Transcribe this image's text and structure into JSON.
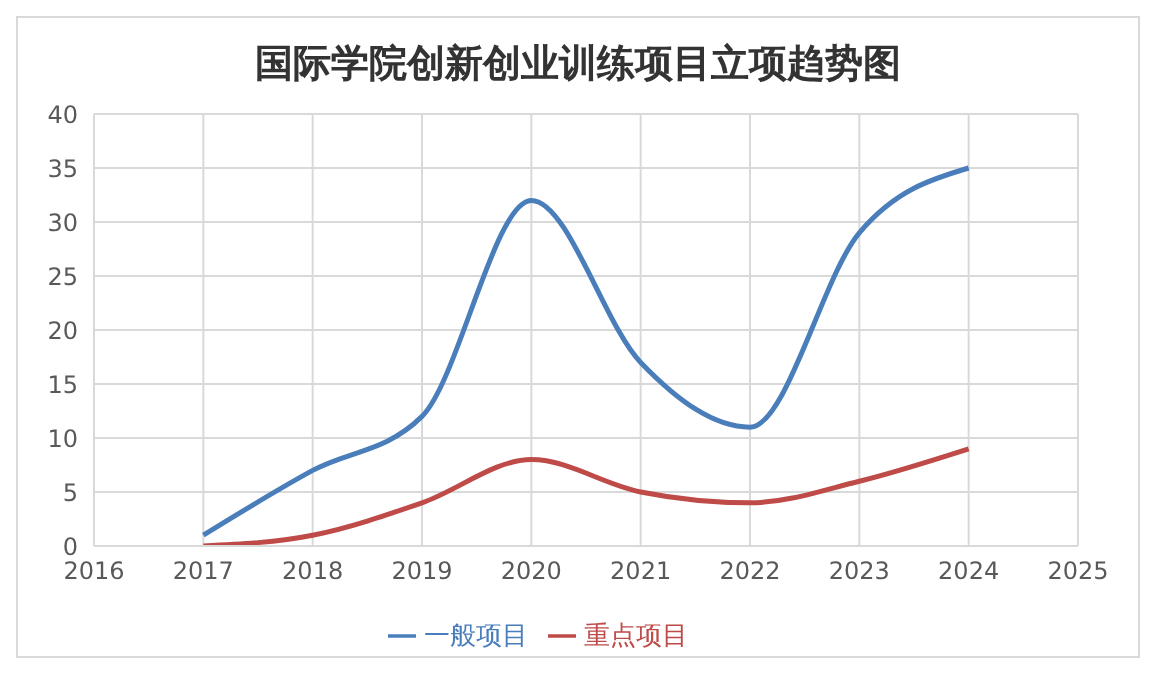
{
  "chart_data": {
    "type": "line",
    "title": "国际学院创新创业训练项目立项趋势图",
    "x": [
      2017,
      2018,
      2019,
      2020,
      2021,
      2022,
      2023,
      2024
    ],
    "series": [
      {
        "name": "一般项目",
        "color": "#4a7ebb",
        "values": [
          1,
          7,
          12,
          32,
          17,
          11,
          29,
          35
        ]
      },
      {
        "name": "重点项目",
        "color": "#be4b48",
        "values": [
          0,
          1,
          4,
          8,
          5,
          4,
          6,
          9
        ]
      }
    ],
    "xlim": [
      2016,
      2025
    ],
    "xticks": [
      2016,
      2017,
      2018,
      2019,
      2020,
      2021,
      2022,
      2023,
      2024,
      2025
    ],
    "ylim": [
      0,
      40
    ],
    "yticks": [
      0,
      5,
      10,
      15,
      20,
      25,
      30,
      35,
      40
    ],
    "grid": true,
    "legend": "bottom",
    "marker": "none",
    "line_style": "solid"
  }
}
